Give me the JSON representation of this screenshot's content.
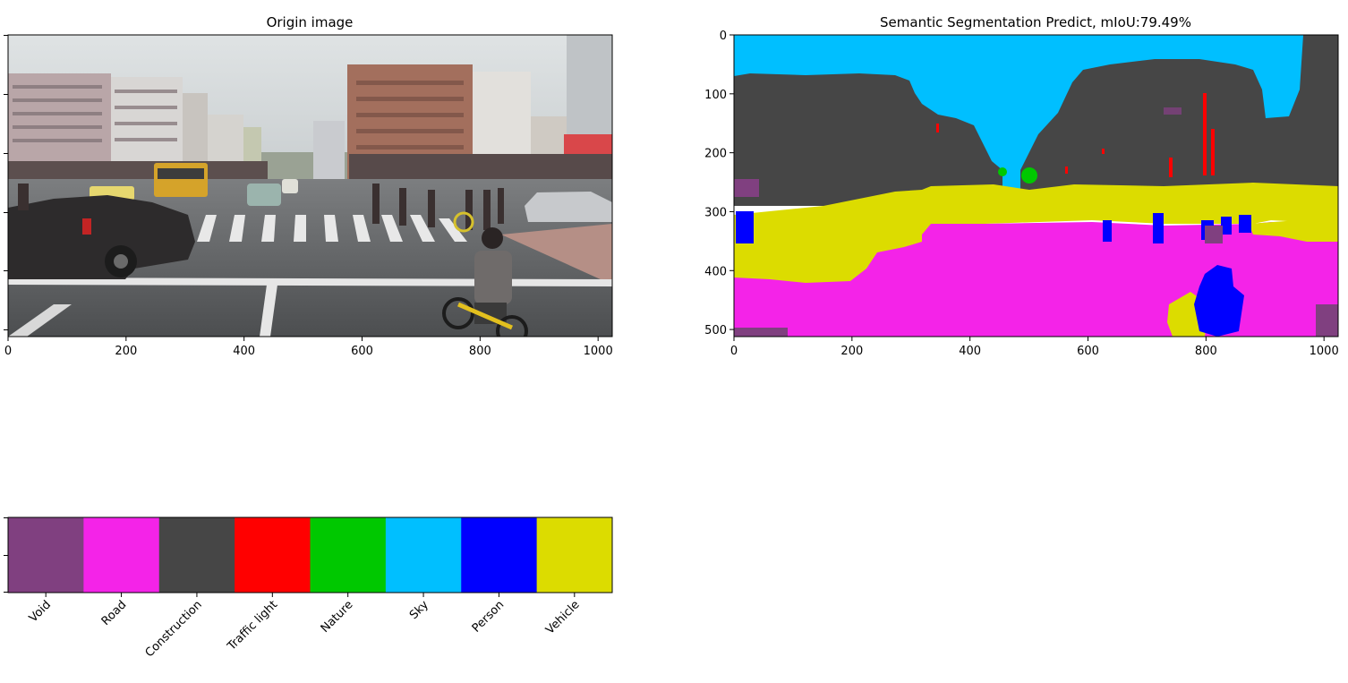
{
  "panels": {
    "origin": {
      "title": "Origin image",
      "x_ticks": [
        "0",
        "200",
        "400",
        "600",
        "800",
        "1000"
      ],
      "x_tick_values": [
        0,
        200,
        400,
        600,
        800,
        1000
      ],
      "x_range": [
        0,
        1024
      ],
      "y_range": [
        512,
        0
      ]
    },
    "prediction": {
      "title": "Semantic Segmentation Predict, mIoU:79.49%",
      "x_ticks": [
        "0",
        "200",
        "400",
        "600",
        "800",
        "1000"
      ],
      "x_tick_values": [
        0,
        200,
        400,
        600,
        800,
        1000
      ],
      "y_ticks": [
        "0",
        "100",
        "200",
        "300",
        "400",
        "500"
      ],
      "y_tick_values": [
        0,
        100,
        200,
        300,
        400,
        500
      ],
      "x_range": [
        0,
        1024
      ],
      "y_range": [
        512,
        0
      ]
    },
    "legend": {
      "classes": [
        {
          "label": "Void",
          "color": "#804080"
        },
        {
          "label": "Road",
          "color": "#f423e8"
        },
        {
          "label": "Construction",
          "color": "#464646"
        },
        {
          "label": "Traffic light",
          "color": "#ff0000"
        },
        {
          "label": "Nature",
          "color": "#00c800"
        },
        {
          "label": "Sky",
          "color": "#00bfff"
        },
        {
          "label": "Person",
          "color": "#0000ff"
        },
        {
          "label": "Vehicle",
          "color": "#dcdc00"
        }
      ]
    }
  }
}
